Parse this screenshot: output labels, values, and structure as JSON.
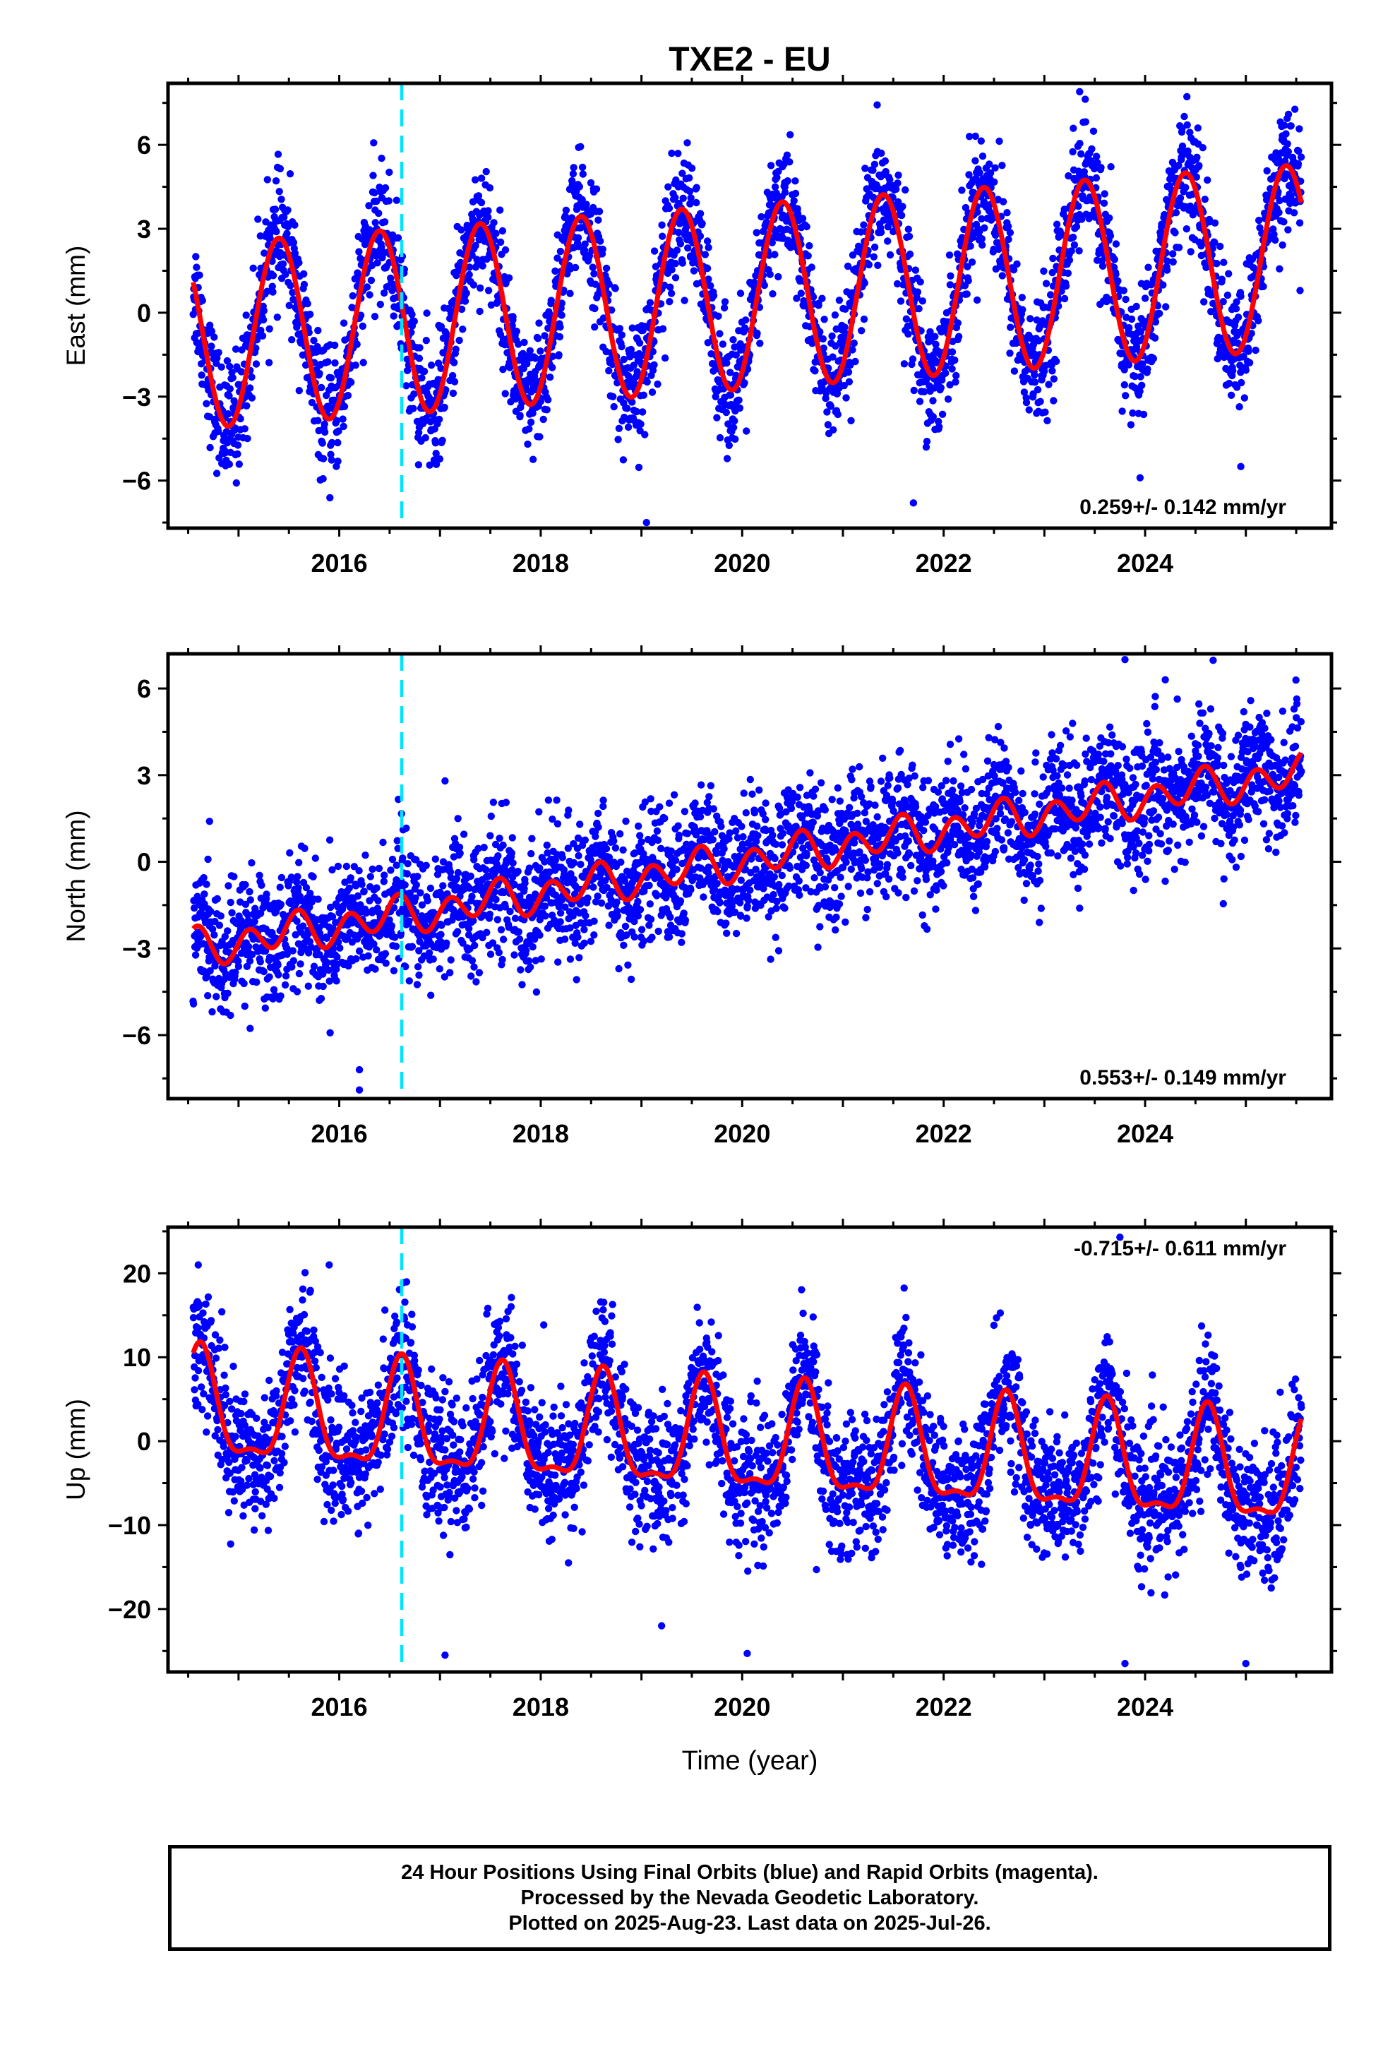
{
  "colors": {
    "points": "#0000ff",
    "model": "#ff0000",
    "event_line": "#00e5ff",
    "frame": "#000000"
  },
  "chart_data": [
    {
      "type": "scatter",
      "title": "TXE2 - EU",
      "xlabel": "",
      "ylabel": "East (mm)",
      "xlim": [
        2014.3,
        2025.85
      ],
      "ylim": [
        -7.7,
        8.2
      ],
      "yticks": [
        -6,
        -3,
        0,
        3,
        6
      ],
      "ytick_labels": [
        "−6",
        "−3",
        "0",
        "3",
        "6"
      ],
      "xticks": [
        2016,
        2018,
        2020,
        2022,
        2024
      ],
      "xtick_labels": [
        "2016",
        "2018",
        "2020",
        "2022",
        "2024"
      ],
      "rate_label": "0.259+/- 0.142 mm/yr",
      "rate_position": "bottom-right",
      "event_line_x": 2016.62,
      "series": [
        {
          "kind": "seasonal-fit",
          "x_start": 2014.55,
          "x_end": 2025.55,
          "model": {
            "offset": -0.85,
            "rate": 0.259,
            "t0": 2014.55,
            "amp_annual": 3.3,
            "peak_annual": 2016.4,
            "amp_semi": 0.0,
            "peak_semi": 0.0
          },
          "scatter_sd": 1.1
        }
      ],
      "annotations": [
        {
          "x": 2023.35,
          "y": 7.9
        },
        {
          "x": 2019.3,
          "y": 5.7
        },
        {
          "x": 2023.95,
          "y": -5.9
        },
        {
          "x": 2019.05,
          "y": -7.5
        },
        {
          "x": 2024.95,
          "y": -5.5
        },
        {
          "x": 2021.7,
          "y": -6.8
        }
      ]
    },
    {
      "type": "scatter",
      "title": "",
      "xlabel": "",
      "ylabel": "North (mm)",
      "xlim": [
        2014.3,
        2025.85
      ],
      "ylim": [
        -8.2,
        7.2
      ],
      "yticks": [
        -6,
        -3,
        0,
        3,
        6
      ],
      "ytick_labels": [
        "−6",
        "−3",
        "0",
        "3",
        "6"
      ],
      "xticks": [
        2016,
        2018,
        2020,
        2022,
        2024
      ],
      "xtick_labels": [
        "2016",
        "2018",
        "2020",
        "2022",
        "2024"
      ],
      "rate_label": "0.553+/- 0.149 mm/yr",
      "rate_position": "bottom-right",
      "event_line_x": 2016.62,
      "series": [
        {
          "kind": "seasonal-fit",
          "x_start": 2014.55,
          "x_end": 2025.55,
          "model": {
            "offset": -3.0,
            "rate": 0.553,
            "t0": 2014.55,
            "amp_annual": 0.25,
            "peak_annual": 2015.5,
            "amp_semi": 0.55,
            "peak_semi": 2015.1
          },
          "scatter_sd": 1.1
        }
      ],
      "annotations": [
        {
          "x": 2023.8,
          "y": 7.0
        },
        {
          "x": 2016.2,
          "y": -7.9
        },
        {
          "x": 2016.2,
          "y": -7.2
        },
        {
          "x": 2017.05,
          "y": 2.8
        },
        {
          "x": 2022.95,
          "y": -2.1
        },
        {
          "x": 2024.2,
          "y": 6.3
        }
      ]
    },
    {
      "type": "scatter",
      "title": "",
      "xlabel": "Time (year)",
      "ylabel": "Up (mm)",
      "xlim": [
        2014.3,
        2025.85
      ],
      "ylim": [
        -27.5,
        25.5
      ],
      "yticks": [
        -20,
        -10,
        0,
        10,
        20
      ],
      "ytick_labels": [
        "−20",
        "−10",
        "0",
        "10",
        "20"
      ],
      "xticks": [
        2016,
        2018,
        2020,
        2022,
        2024
      ],
      "xtick_labels": [
        "2016",
        "2018",
        "2020",
        "2022",
        "2024"
      ],
      "rate_label": "-0.715+/- 0.611 mm/yr",
      "rate_position": "top-right",
      "event_line_x": 2016.62,
      "series": [
        {
          "kind": "seasonal-fit",
          "x_start": 2014.55,
          "x_end": 2025.55,
          "model": {
            "offset": 3.5,
            "rate": -0.715,
            "t0": 2014.55,
            "amp_annual": 6.2,
            "peak_annual": 2015.62,
            "amp_semi": 2.2,
            "peak_semi": 2015.62
          },
          "scatter_sd": 4.0
        }
      ],
      "annotations": [
        {
          "x": 2014.6,
          "y": 21.0
        },
        {
          "x": 2015.9,
          "y": 21.0
        },
        {
          "x": 2020.05,
          "y": -25.3
        },
        {
          "x": 2017.05,
          "y": -25.5
        },
        {
          "x": 2023.8,
          "y": -26.5
        },
        {
          "x": 2025.0,
          "y": -26.5
        },
        {
          "x": 2023.75,
          "y": 24.3
        },
        {
          "x": 2019.2,
          "y": -22.0
        }
      ]
    }
  ],
  "caption": {
    "line1": "24 Hour Positions Using Final Orbits (blue) and Rapid Orbits (magenta).",
    "line2": "Processed by the Nevada Geodetic Laboratory.",
    "line3": "Plotted on 2025-Aug-23. Last data on 2025-Jul-26."
  }
}
